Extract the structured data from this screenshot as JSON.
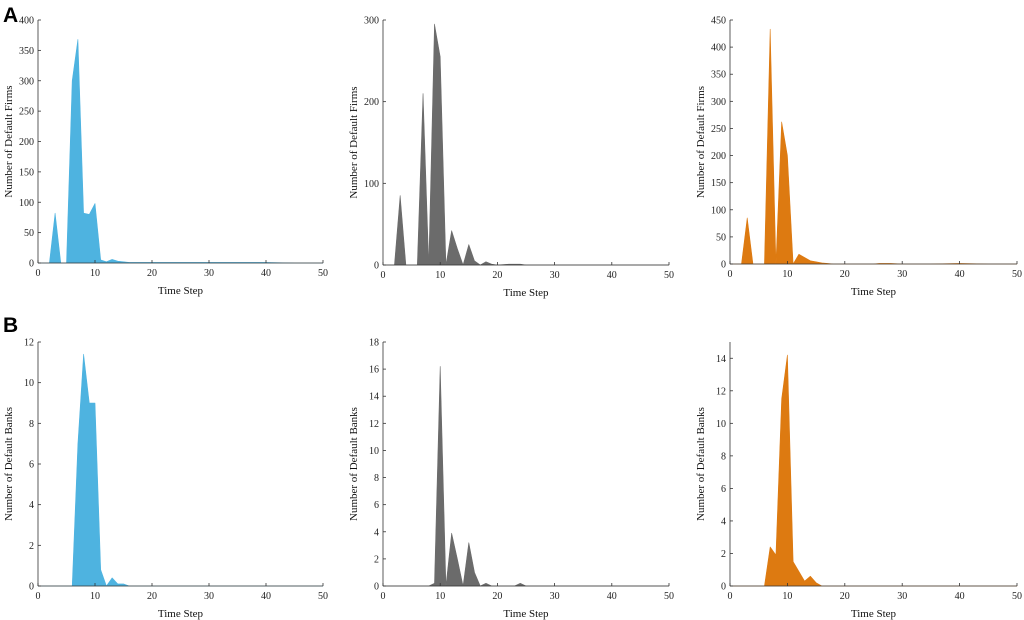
{
  "panel_labels": [
    "A",
    "B"
  ],
  "colors": {
    "blue": "#4eb3e0",
    "gray": "#6b6b6b",
    "orange": "#dd7a11"
  },
  "chart_data": [
    {
      "type": "area",
      "row": "A",
      "color": "#4eb3e0",
      "xlabel": "Time Step",
      "ylabel": "Number of Default Firms",
      "xlim": [
        0,
        50
      ],
      "ylim": [
        0,
        400
      ],
      "xticks": [
        0,
        10,
        20,
        30,
        40,
        50
      ],
      "yticks": [
        0,
        50,
        100,
        150,
        200,
        250,
        300,
        350,
        400
      ],
      "x": [
        0,
        1,
        2,
        3,
        4,
        5,
        6,
        7,
        8,
        9,
        10,
        11,
        12,
        13,
        14,
        15,
        16,
        17,
        18,
        19,
        20,
        22,
        25,
        30,
        35,
        40,
        45,
        50
      ],
      "values": [
        0,
        0,
        0,
        82,
        0,
        0,
        300,
        368,
        82,
        80,
        98,
        5,
        2,
        6,
        3,
        2,
        1,
        1,
        1,
        1,
        1,
        1,
        1,
        1,
        1,
        1,
        0,
        0
      ]
    },
    {
      "type": "area",
      "row": "A",
      "color": "#6b6b6b",
      "xlabel": "Time Step",
      "ylabel": "Number of Default Firms",
      "xlim": [
        0,
        50
      ],
      "ylim": [
        0,
        300
      ],
      "xticks": [
        0,
        10,
        20,
        30,
        40,
        50
      ],
      "yticks": [
        0,
        100,
        200,
        300
      ],
      "x": [
        0,
        1,
        2,
        3,
        4,
        5,
        6,
        7,
        8,
        9,
        10,
        11,
        12,
        13,
        14,
        15,
        16,
        17,
        18,
        19,
        20,
        22,
        24,
        25,
        30,
        35,
        40,
        45,
        50
      ],
      "values": [
        0,
        0,
        0,
        85,
        0,
        0,
        0,
        210,
        0,
        295,
        255,
        0,
        42,
        20,
        0,
        25,
        5,
        0,
        4,
        1,
        0,
        1,
        1,
        0,
        0,
        0,
        0,
        0,
        0
      ]
    },
    {
      "type": "area",
      "row": "A",
      "color": "#dd7a11",
      "xlabel": "Time Step",
      "ylabel": "Number of Default Firms",
      "xlim": [
        0,
        50
      ],
      "ylim": [
        0,
        450
      ],
      "xticks": [
        0,
        10,
        20,
        30,
        40,
        50
      ],
      "yticks": [
        0,
        50,
        100,
        150,
        200,
        250,
        300,
        350,
        400,
        450
      ],
      "x": [
        0,
        1,
        2,
        3,
        4,
        5,
        6,
        7,
        8,
        9,
        10,
        11,
        12,
        13,
        14,
        15,
        16,
        17,
        18,
        20,
        25,
        26,
        28,
        30,
        35,
        40,
        45,
        50
      ],
      "values": [
        0,
        0,
        0,
        85,
        0,
        0,
        0,
        433,
        0,
        262,
        200,
        0,
        18,
        12,
        6,
        4,
        2,
        1,
        0,
        0,
        0,
        1,
        1,
        0,
        0,
        1,
        0,
        0
      ]
    },
    {
      "type": "area",
      "row": "B",
      "color": "#4eb3e0",
      "xlabel": "Time Step",
      "ylabel": "Number of Default Banks",
      "xlim": [
        0,
        50
      ],
      "ylim": [
        0,
        12
      ],
      "xticks": [
        0,
        10,
        20,
        30,
        40,
        50
      ],
      "yticks": [
        0,
        2,
        4,
        6,
        8,
        10,
        12
      ],
      "x": [
        0,
        5,
        6,
        7,
        8,
        9,
        10,
        11,
        12,
        13,
        14,
        15,
        16,
        17,
        20,
        25,
        30,
        40,
        50
      ],
      "values": [
        0,
        0,
        0,
        7,
        11.4,
        9,
        9,
        0.8,
        0,
        0.4,
        0.1,
        0.1,
        0,
        0,
        0,
        0,
        0,
        0,
        0
      ]
    },
    {
      "type": "area",
      "row": "B",
      "color": "#6b6b6b",
      "xlabel": "Time Step",
      "ylabel": "Number of Default Banks",
      "xlim": [
        0,
        50
      ],
      "ylim": [
        0,
        18
      ],
      "xticks": [
        0,
        10,
        20,
        30,
        40,
        50
      ],
      "yticks": [
        0,
        2,
        4,
        6,
        8,
        10,
        12,
        14,
        16,
        18
      ],
      "x": [
        0,
        7,
        8,
        9,
        10,
        11,
        12,
        13,
        14,
        15,
        16,
        17,
        18,
        19,
        20,
        22,
        23,
        24,
        25,
        30,
        40,
        50
      ],
      "values": [
        0,
        0,
        0,
        0.2,
        16.2,
        0,
        3.9,
        2,
        0,
        3.2,
        1,
        0,
        0.2,
        0,
        0,
        0,
        0,
        0.2,
        0,
        0,
        0,
        0
      ]
    },
    {
      "type": "area",
      "row": "B",
      "color": "#dd7a11",
      "xlabel": "Time Step",
      "ylabel": "Number of Default Banks",
      "xlim": [
        0,
        50
      ],
      "ylim": [
        0,
        15
      ],
      "xticks": [
        0,
        10,
        20,
        30,
        40,
        50
      ],
      "yticks": [
        0,
        2,
        4,
        6,
        8,
        10,
        12,
        14
      ],
      "x": [
        0,
        5,
        6,
        7,
        8,
        9,
        10,
        11,
        12,
        13,
        14,
        15,
        16,
        17,
        20,
        30,
        40,
        50
      ],
      "values": [
        0,
        0,
        0,
        2.4,
        1.9,
        11.5,
        14.2,
        1.5,
        0.9,
        0.3,
        0.6,
        0.2,
        0,
        0,
        0,
        0,
        0,
        0
      ]
    }
  ]
}
